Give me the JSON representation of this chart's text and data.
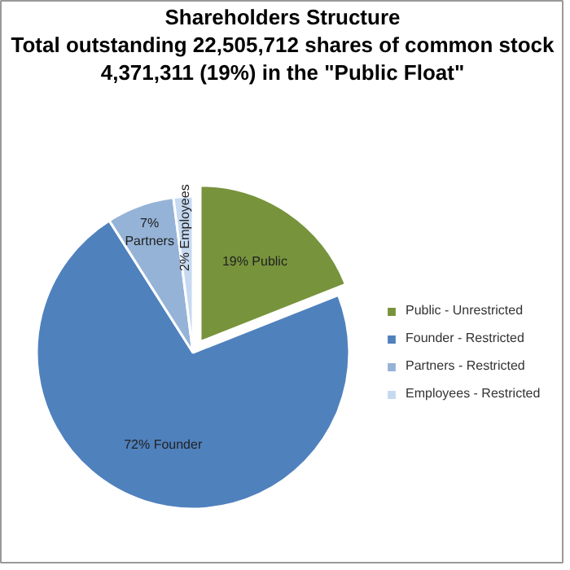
{
  "chart_data": {
    "type": "pie",
    "title": "Shareholders Structure",
    "subtitle": "Total outstanding 22,505,712 shares of common stock\n4,371,311 (19%) in the \"Public Float\"",
    "categories": [
      "Public - Unrestricted",
      "Founder - Restricted",
      "Partners - Restricted",
      "Employees - Restricted"
    ],
    "values": [
      19,
      72,
      7,
      2
    ],
    "colors": [
      "#77933c",
      "#4f81bd",
      "#95b3d7",
      "#c6d9f1"
    ],
    "value_labels": [
      "19% Public",
      "72% Founder",
      "7% Partners",
      "2% Employees"
    ],
    "legend": "right"
  }
}
